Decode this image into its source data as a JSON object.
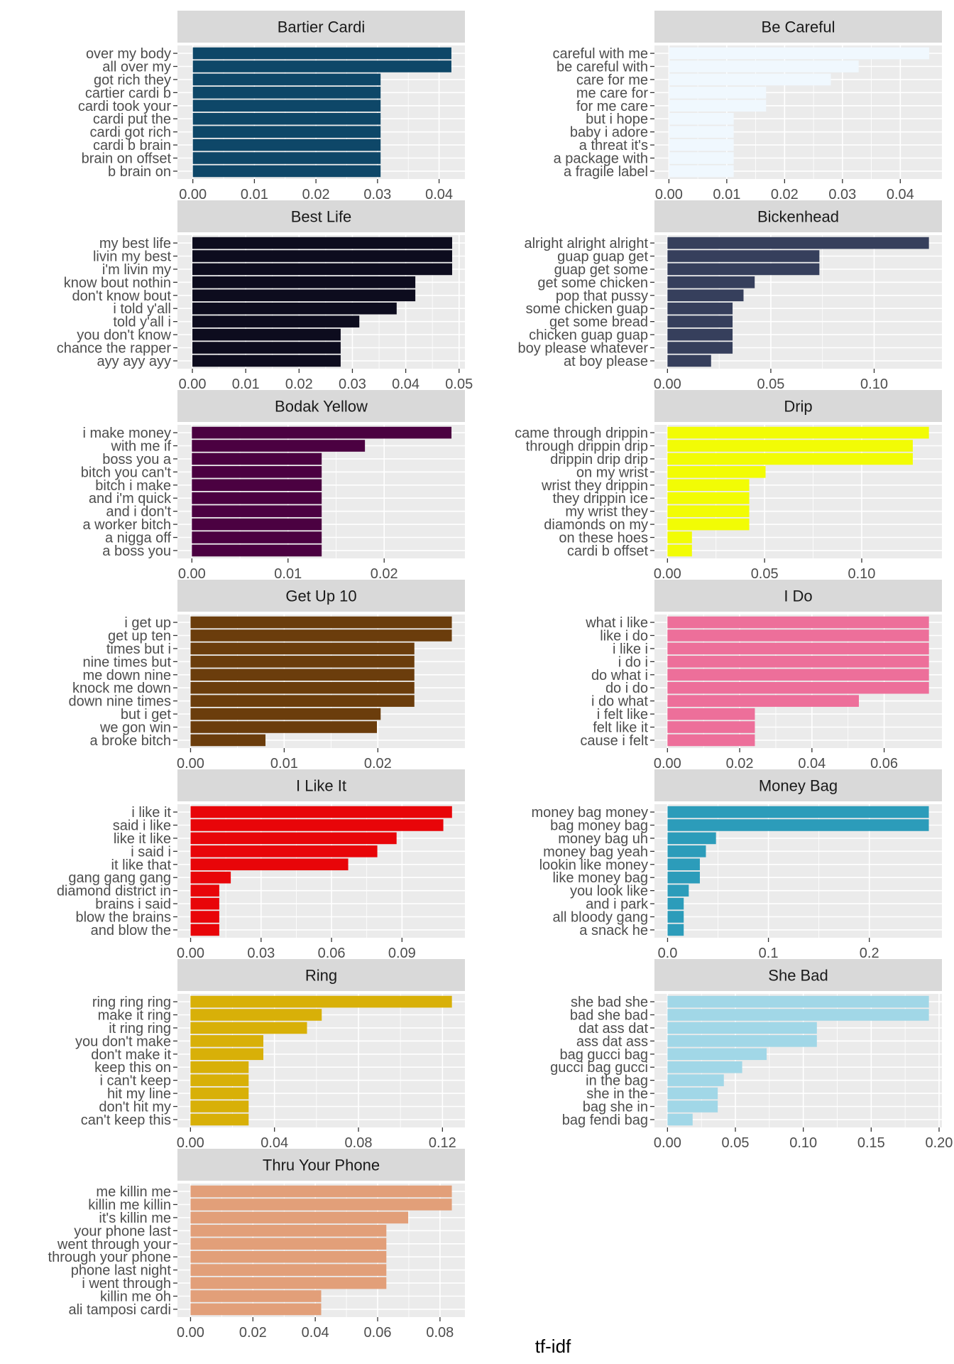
{
  "chart_data": {
    "type": "bar",
    "orientation": "horizontal",
    "xlabel": "tf-idf",
    "ylabel": "",
    "grid": true,
    "legend": "none",
    "facets": [
      {
        "title": "Bartier Cardi",
        "color": "#0e4768",
        "categories": [
          "over my body",
          "all over my",
          "got rich they",
          "cartier cardi b",
          "cardi took your",
          "cardi put the",
          "cardi got rich",
          "cardi b brain",
          "brain on offset",
          "b brain on"
        ],
        "values": [
          0.042,
          0.042,
          0.0305,
          0.0305,
          0.0305,
          0.0305,
          0.0305,
          0.0305,
          0.0305,
          0.0305
        ],
        "xlim": [
          -0.0025,
          0.0442
        ],
        "xticks": [
          0.0,
          0.01,
          0.02,
          0.03,
          0.04
        ],
        "xtick_labels": [
          "0.00",
          "0.01",
          "0.02",
          "0.03",
          "0.04"
        ]
      },
      {
        "title": "Be Careful",
        "color": "#f0f8fe",
        "categories": [
          "careful with me",
          "be careful with",
          "care for me",
          "me care for",
          "for me care",
          "but i hope",
          "baby i adore",
          "a threat it's",
          "a package with",
          "a fragile label"
        ],
        "values": [
          0.045,
          0.0328,
          0.028,
          0.0168,
          0.0168,
          0.0112,
          0.0112,
          0.0112,
          0.0112,
          0.0112
        ],
        "xlim": [
          -0.0025,
          0.0472
        ],
        "xticks": [
          0.0,
          0.01,
          0.02,
          0.03,
          0.04
        ],
        "xtick_labels": [
          "0.00",
          "0.01",
          "0.02",
          "0.03",
          "0.04"
        ]
      },
      {
        "title": "Best Life",
        "color": "#0d0c1e",
        "categories": [
          "my best life",
          "livin my best",
          "i'm livin my",
          "know bout nothin",
          "don't know bout",
          "i told y'all",
          "told y'all i",
          "you don't know",
          "chance the rapper",
          "ayy ayy ayy"
        ],
        "values": [
          0.0487,
          0.0487,
          0.0487,
          0.0418,
          0.0418,
          0.0383,
          0.0313,
          0.0278,
          0.0278,
          0.0278
        ],
        "xlim": [
          -0.0028,
          0.0511
        ],
        "xticks": [
          0.0,
          0.01,
          0.02,
          0.03,
          0.04,
          0.05
        ],
        "xtick_labels": [
          "0.00",
          "0.01",
          "0.02",
          "0.03",
          "0.04",
          "0.05"
        ]
      },
      {
        "title": "Bickenhead",
        "color": "#363f5c",
        "categories": [
          "alright alright alright",
          "guap guap get",
          "guap get some",
          "get some chicken",
          "pop that pussy",
          "some chicken guap",
          "get some bread",
          "chicken guap guap",
          "boy please whatever",
          "at boy please"
        ],
        "values": [
          0.1265,
          0.0735,
          0.0735,
          0.0422,
          0.0368,
          0.0315,
          0.0315,
          0.0315,
          0.0315,
          0.0211
        ],
        "xlim": [
          -0.0063,
          0.1328
        ],
        "xticks": [
          0.0,
          0.05,
          0.1
        ],
        "xtick_labels": [
          "0.00",
          "0.05",
          "0.10"
        ]
      },
      {
        "title": "Bodak Yellow",
        "color": "#4b0141",
        "categories": [
          "i make money",
          "with me if",
          "boss you a",
          "bitch you can't",
          "bitch i make",
          "and i'm quick",
          "and i don't",
          "a worker bitch",
          "a nigga off",
          "a boss you"
        ],
        "values": [
          0.027,
          0.018,
          0.0135,
          0.0135,
          0.0135,
          0.0135,
          0.0135,
          0.0135,
          0.0135,
          0.0135
        ],
        "xlim": [
          -0.0015,
          0.0284
        ],
        "xticks": [
          0.0,
          0.01,
          0.02
        ],
        "xtick_labels": [
          "0.00",
          "0.01",
          "0.02"
        ]
      },
      {
        "title": "Drip",
        "color": "#f2fc05",
        "categories": [
          "came through drippin",
          "through drippin drip",
          "drippin drip drip",
          "on my wrist",
          "wrist they drippin",
          "they drippin ice",
          "my wrist they",
          "diamonds on my",
          "on these hoes",
          "cardi b offset"
        ],
        "values": [
          0.1346,
          0.1263,
          0.1263,
          0.0505,
          0.0421,
          0.0421,
          0.0421,
          0.0421,
          0.0126,
          0.0126
        ],
        "xlim": [
          -0.0067,
          0.1413
        ],
        "xticks": [
          0.0,
          0.05,
          0.1
        ],
        "xtick_labels": [
          "0.00",
          "0.05",
          "0.10"
        ]
      },
      {
        "title": "Get Up 10",
        "color": "#6b3d0c",
        "categories": [
          "i get up",
          "get up ten",
          "times but i",
          "nine times but",
          "me down nine",
          "knock me down",
          "down nine times",
          "but i get",
          "we gon win",
          "a broke bitch"
        ],
        "values": [
          0.0279,
          0.0279,
          0.0239,
          0.0239,
          0.0239,
          0.0239,
          0.0239,
          0.0203,
          0.0199,
          0.008
        ],
        "xlim": [
          -0.0014,
          0.0293
        ],
        "xticks": [
          0.0,
          0.01,
          0.02
        ],
        "xtick_labels": [
          "0.00",
          "0.01",
          "0.02"
        ]
      },
      {
        "title": "I Do",
        "color": "#ed6f9a",
        "categories": [
          "what i like",
          "like i do",
          "i like i",
          "i do i",
          "do what i",
          "do i do",
          "i do what",
          "i felt like",
          "felt like it",
          "cause i felt"
        ],
        "values": [
          0.0724,
          0.0724,
          0.0724,
          0.0724,
          0.0724,
          0.0724,
          0.053,
          0.0242,
          0.0242,
          0.0242
        ],
        "xlim": [
          -0.0036,
          0.076
        ],
        "xticks": [
          0.0,
          0.02,
          0.04,
          0.06
        ],
        "xtick_labels": [
          "0.00",
          "0.02",
          "0.04",
          "0.06"
        ]
      },
      {
        "title": "I Like It",
        "color": "#e80509",
        "categories": [
          "i like it",
          "said i like",
          "like it like",
          "i said i",
          "it like that",
          "gang gang gang",
          "diamond district in",
          "brains i said",
          "blow the brains",
          "and blow the"
        ],
        "values": [
          0.1113,
          0.1076,
          0.0877,
          0.0795,
          0.0671,
          0.0171,
          0.0122,
          0.0122,
          0.0122,
          0.0122
        ],
        "xlim": [
          -0.0056,
          0.1168
        ],
        "xticks": [
          0.0,
          0.03,
          0.06,
          0.09
        ],
        "xtick_labels": [
          "0.00",
          "0.03",
          "0.06",
          "0.09"
        ]
      },
      {
        "title": "Money Bag",
        "color": "#2c9cba",
        "categories": [
          "money bag money",
          "bag money bag",
          "money bag uh",
          "money bag yeah",
          "lookin like money",
          "like money bag",
          "you look like",
          "and i park",
          "all bloody gang",
          "a snack he"
        ],
        "values": [
          0.259,
          0.259,
          0.048,
          0.038,
          0.032,
          0.032,
          0.021,
          0.016,
          0.016,
          0.016
        ],
        "xlim": [
          -0.013,
          0.272
        ],
        "xticks": [
          0.0,
          0.1,
          0.2
        ],
        "xtick_labels": [
          "0.0",
          "0.1",
          "0.2"
        ]
      },
      {
        "title": "Ring",
        "color": "#d8b008",
        "categories": [
          "ring ring ring",
          "make it ring",
          "it ring ring",
          "you don't make",
          "don't make it",
          "keep this on",
          "i can't keep",
          "hit my line",
          "don't hit my",
          "can't keep this"
        ],
        "values": [
          0.1245,
          0.0625,
          0.0555,
          0.0347,
          0.0347,
          0.0277,
          0.0277,
          0.0277,
          0.0277,
          0.0277
        ],
        "xlim": [
          -0.0062,
          0.1307
        ],
        "xticks": [
          0.0,
          0.04,
          0.08,
          0.12
        ],
        "xtick_labels": [
          "0.00",
          "0.04",
          "0.08",
          "0.12"
        ]
      },
      {
        "title": "She Bad",
        "color": "#a1d7e7",
        "categories": [
          "she bad she",
          "bad she bad",
          "dat ass dat",
          "ass dat ass",
          "bag gucci bag",
          "gucci bag gucci",
          "in the bag",
          "she in the",
          "bag she in",
          "bag fendi bag"
        ],
        "values": [
          0.1925,
          0.1925,
          0.11,
          0.11,
          0.073,
          0.055,
          0.0415,
          0.037,
          0.037,
          0.0185
        ],
        "xlim": [
          -0.0096,
          0.2021
        ],
        "xticks": [
          0.0,
          0.05,
          0.1,
          0.15,
          0.2
        ],
        "xtick_labels": [
          "0.00",
          "0.05",
          "0.10",
          "0.15",
          "0.20"
        ]
      },
      {
        "title": "Thru Your Phone",
        "color": "#e29f79",
        "categories": [
          "me killin me",
          "killin me killin",
          "it's killin me",
          "your phone last",
          "went through your",
          "through your phone",
          "phone last night",
          "i went through",
          "killin me oh",
          "ali tamposi cardi"
        ],
        "values": [
          0.0838,
          0.0838,
          0.0698,
          0.0628,
          0.0628,
          0.0628,
          0.0628,
          0.0628,
          0.0419,
          0.0419
        ],
        "xlim": [
          -0.0042,
          0.088
        ],
        "xticks": [
          0.0,
          0.02,
          0.04,
          0.06,
          0.08
        ],
        "xtick_labels": [
          "0.00",
          "0.02",
          "0.04",
          "0.06",
          "0.08"
        ]
      }
    ]
  }
}
